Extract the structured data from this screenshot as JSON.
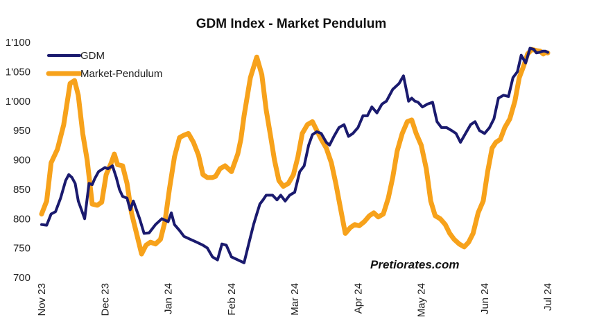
{
  "chart_data": {
    "type": "line",
    "title": "GDM Index - Market Pendulum",
    "xlabel": "",
    "ylabel": "",
    "ylim": [
      700,
      1100
    ],
    "yticks": [
      700,
      750,
      800,
      850,
      900,
      950,
      1000,
      1050,
      1100
    ],
    "ytick_labels": [
      "700",
      "750",
      "800",
      "850",
      "900",
      "950",
      "1'000",
      "1'050",
      "1'100"
    ],
    "x_domain": [
      0,
      8
    ],
    "x_tick_labels": [
      "Nov 23",
      "Dec 23",
      "Jan 24",
      "Feb 24",
      "Mar 24",
      "Apr 24",
      "May 24",
      "Jun 24",
      "Jul 24"
    ],
    "x_tick_positions": [
      0,
      1,
      2,
      3,
      4,
      5,
      6,
      7,
      8
    ],
    "legend_position": "top-left",
    "grid": false,
    "series": [
      {
        "name": "GDM",
        "color": "#1a1a6e",
        "x": [
          0.0,
          0.08,
          0.15,
          0.22,
          0.3,
          0.38,
          0.43,
          0.48,
          0.53,
          0.58,
          0.62,
          0.68,
          0.75,
          0.8,
          0.84,
          0.9,
          1.0,
          1.05,
          1.12,
          1.18,
          1.23,
          1.28,
          1.35,
          1.4,
          1.45,
          1.55,
          1.62,
          1.7,
          1.8,
          1.9,
          2.0,
          2.05,
          2.1,
          2.18,
          2.25,
          2.35,
          2.45,
          2.55,
          2.62,
          2.7,
          2.78,
          2.85,
          2.92,
          3.0,
          3.1,
          3.2,
          3.28,
          3.35,
          3.4,
          3.45,
          3.5,
          3.55,
          3.65,
          3.72,
          3.78,
          3.85,
          3.92,
          4.0,
          4.08,
          4.15,
          4.22,
          4.28,
          4.35,
          4.42,
          4.5,
          4.55,
          4.62,
          4.7,
          4.78,
          4.85,
          4.92,
          5.0,
          5.08,
          5.15,
          5.22,
          5.3,
          5.38,
          5.45,
          5.55,
          5.65,
          5.72,
          5.8,
          5.85,
          5.9,
          5.95,
          6.02,
          6.1,
          6.18,
          6.25,
          6.32,
          6.4,
          6.48,
          6.55,
          6.62,
          6.7,
          6.78,
          6.85,
          6.92,
          7.0,
          7.08,
          7.15,
          7.22,
          7.3,
          7.38,
          7.45,
          7.52,
          7.58,
          7.65,
          7.72,
          7.78,
          7.82,
          7.87,
          7.92,
          7.96,
          8.0
        ],
        "y": [
          790,
          789,
          808,
          812,
          835,
          865,
          875,
          870,
          860,
          830,
          818,
          800,
          860,
          858,
          868,
          880,
          887,
          885,
          890,
          870,
          850,
          838,
          835,
          815,
          830,
          800,
          775,
          776,
          790,
          800,
          795,
          810,
          790,
          780,
          770,
          765,
          760,
          755,
          750,
          735,
          730,
          757,
          755,
          735,
          730,
          725,
          760,
          790,
          808,
          825,
          832,
          840,
          840,
          832,
          840,
          830,
          840,
          845,
          880,
          890,
          925,
          943,
          948,
          945,
          930,
          925,
          940,
          955,
          960,
          940,
          945,
          955,
          975,
          975,
          990,
          980,
          995,
          1000,
          1020,
          1030,
          1043,
          1000,
          1005,
          1000,
          998,
          990,
          995,
          998,
          965,
          955,
          955,
          950,
          945,
          930,
          945,
          960,
          965,
          950,
          945,
          955,
          970,
          1005,
          1010,
          1008,
          1040,
          1050,
          1078,
          1065,
          1090,
          1088,
          1082,
          1083,
          1085,
          1085,
          1083
        ],
        "line_width": 4
      },
      {
        "name": "Market-Pendulum",
        "color": "#f7a21b",
        "x": [
          0.0,
          0.08,
          0.15,
          0.25,
          0.35,
          0.45,
          0.52,
          0.58,
          0.65,
          0.72,
          0.8,
          0.88,
          0.95,
          1.02,
          1.1,
          1.15,
          1.2,
          1.28,
          1.35,
          1.42,
          1.5,
          1.58,
          1.65,
          1.72,
          1.8,
          1.88,
          1.95,
          2.02,
          2.1,
          2.18,
          2.25,
          2.32,
          2.4,
          2.48,
          2.55,
          2.62,
          2.7,
          2.75,
          2.82,
          2.9,
          3.0,
          3.1,
          3.15,
          3.2,
          3.3,
          3.4,
          3.48,
          3.55,
          3.62,
          3.68,
          3.75,
          3.82,
          3.9,
          3.98,
          4.05,
          4.12,
          4.2,
          4.28,
          4.35,
          4.42,
          4.5,
          4.58,
          4.65,
          4.72,
          4.8,
          4.88,
          4.95,
          5.02,
          5.1,
          5.18,
          5.25,
          5.32,
          5.4,
          5.48,
          5.55,
          5.62,
          5.7,
          5.78,
          5.85,
          5.92,
          6.0,
          6.08,
          6.15,
          6.22,
          6.3,
          6.38,
          6.45,
          6.52,
          6.6,
          6.68,
          6.75,
          6.82,
          6.9,
          6.98,
          7.05,
          7.12,
          7.18,
          7.25,
          7.32,
          7.4,
          7.48,
          7.55,
          7.62,
          7.68,
          7.75,
          7.82,
          7.88,
          7.93,
          7.96,
          8.0
        ],
        "y": [
          808,
          830,
          895,
          918,
          960,
          1030,
          1035,
          1010,
          945,
          900,
          825,
          823,
          828,
          875,
          895,
          910,
          892,
          890,
          860,
          810,
          775,
          740,
          755,
          760,
          757,
          765,
          795,
          850,
          905,
          938,
          942,
          945,
          930,
          908,
          875,
          870,
          870,
          872,
          885,
          890,
          880,
          910,
          935,
          975,
          1040,
          1075,
          1045,
          985,
          940,
          900,
          865,
          855,
          860,
          875,
          905,
          945,
          960,
          965,
          950,
          935,
          920,
          895,
          860,
          820,
          775,
          785,
          790,
          788,
          795,
          805,
          810,
          803,
          808,
          835,
          870,
          915,
          945,
          965,
          968,
          945,
          925,
          885,
          830,
          805,
          800,
          790,
          775,
          765,
          757,
          752,
          760,
          775,
          810,
          830,
          880,
          920,
          930,
          935,
          955,
          970,
          1000,
          1040,
          1060,
          1080,
          1088,
          1086,
          1085,
          1080,
          1083,
          1082
        ],
        "line_width": 7
      }
    ]
  },
  "watermark": "Pretiorates.com"
}
